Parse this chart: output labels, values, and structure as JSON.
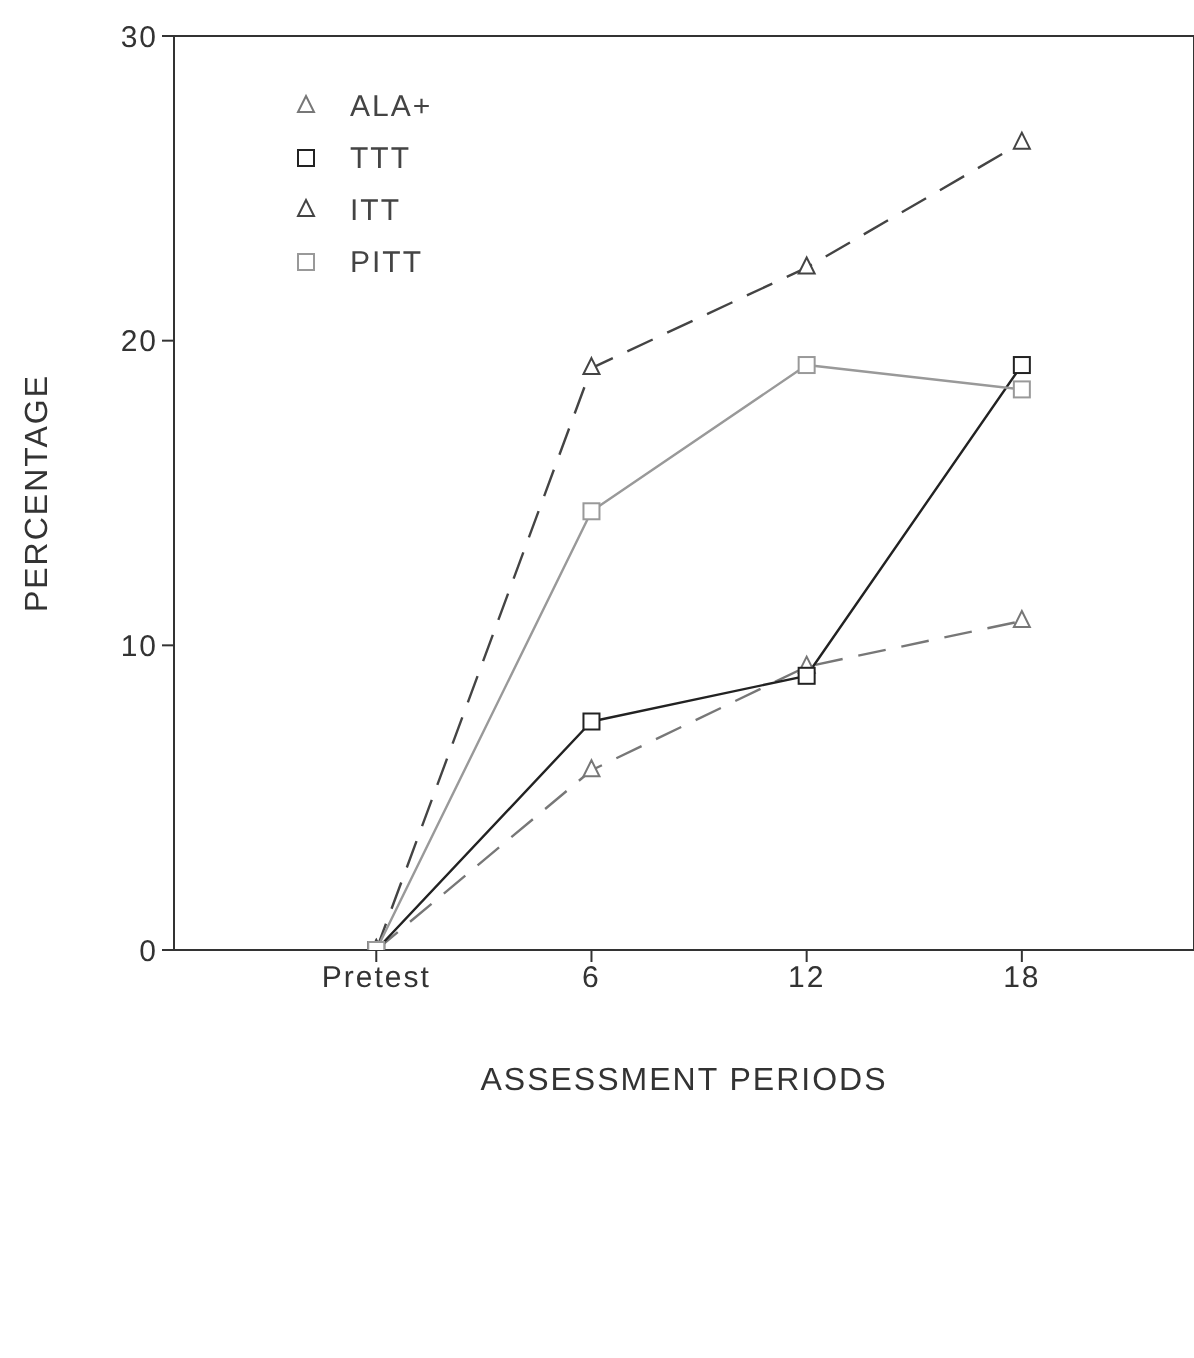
{
  "chart_data": {
    "type": "line",
    "xlabel": "ASSESSMENT PERIODS",
    "ylabel": "PERCENTAGE",
    "categories": [
      "Pretest",
      "6",
      "12",
      "18"
    ],
    "ylim": [
      0,
      30
    ],
    "yticks": [
      0,
      10,
      20,
      30
    ],
    "grid": false,
    "legend": "top left",
    "series": [
      {
        "name": "ALA+",
        "color": "#777777",
        "marker": "triangle",
        "line_style": "dashed",
        "values": [
          0,
          5.9,
          9.3,
          10.8
        ]
      },
      {
        "name": "TTT",
        "color": "#222222",
        "marker": "square",
        "line_style": "solid",
        "values": [
          0,
          7.5,
          9.0,
          19.2
        ]
      },
      {
        "name": "ITT",
        "color": "#444444",
        "marker": "triangle",
        "line_style": "dashed",
        "values": [
          0,
          19.1,
          22.4,
          26.5
        ]
      },
      {
        "name": "PITT",
        "color": "#999999",
        "marker": "square",
        "line_style": "solid",
        "values": [
          0,
          14.4,
          19.2,
          18.4
        ]
      }
    ]
  }
}
